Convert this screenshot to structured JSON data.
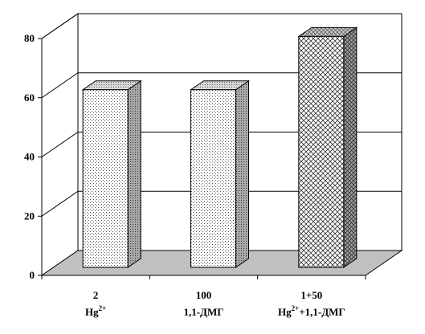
{
  "chart_data": {
    "type": "bar",
    "style": "3d",
    "categories": [
      {
        "line1": "2",
        "line2": "Hg",
        "line2_sup": "2+",
        "line2_rest": ""
      },
      {
        "line1": "100",
        "line2": "1,1-ДМГ",
        "line2_sup": "",
        "line2_rest": ""
      },
      {
        "line1": "1+50",
        "line2": "Hg",
        "line2_sup": "2+",
        "line2_rest": "+1,1-ДМГ"
      }
    ],
    "values": [
      60,
      60,
      78
    ],
    "ylim": [
      0,
      80
    ],
    "yticks": [
      "0",
      "20",
      "40",
      "60",
      "80"
    ],
    "grid": true,
    "title": "",
    "xlabel": "",
    "ylabel": "",
    "colors": {
      "bar_front": "#ffffff",
      "bar_side": "#9a9a9a",
      "bar_top": "#c8c8c8",
      "floor": "#c0c0c0",
      "axis": "#000000"
    },
    "patterns": [
      "fine-dots",
      "fine-dots",
      "crosshatch"
    ]
  }
}
